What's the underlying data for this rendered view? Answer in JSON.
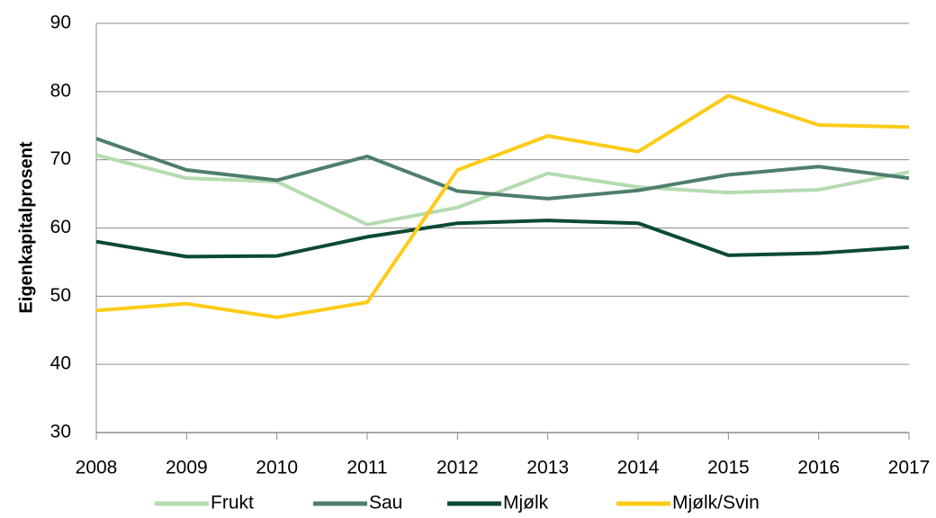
{
  "chart_data": {
    "type": "line",
    "y_label": "Eigenkapitalprosent",
    "categories": [
      "2008",
      "2009",
      "2010",
      "2011",
      "2012",
      "2013",
      "2014",
      "2015",
      "2016",
      "2017"
    ],
    "series": [
      {
        "name": "Frukt",
        "color": "#b5dbb0",
        "values": [
          70.7,
          67.3,
          66.8,
          60.5,
          63.0,
          68.0,
          66.0,
          65.2,
          65.6,
          68.2
        ]
      },
      {
        "name": "Sau",
        "color": "#4e7f6c",
        "values": [
          73.1,
          68.5,
          67.0,
          70.5,
          65.4,
          64.3,
          65.5,
          67.8,
          69.0,
          67.3
        ]
      },
      {
        "name": "Mjølk",
        "color": "#0c4a33",
        "values": [
          58.0,
          55.8,
          55.9,
          58.7,
          60.7,
          61.1,
          60.7,
          56.0,
          56.3,
          57.2
        ]
      },
      {
        "name": "Mjølk/Svin",
        "color": "#fdcb17",
        "values": [
          47.9,
          48.9,
          46.9,
          49.1,
          68.5,
          73.5,
          71.2,
          79.4,
          75.1,
          74.8
        ]
      }
    ],
    "ylim": [
      30,
      90
    ],
    "yticks": [
      30,
      40,
      50,
      60,
      70,
      80,
      90
    ],
    "grid": true,
    "legend": "bottom"
  }
}
